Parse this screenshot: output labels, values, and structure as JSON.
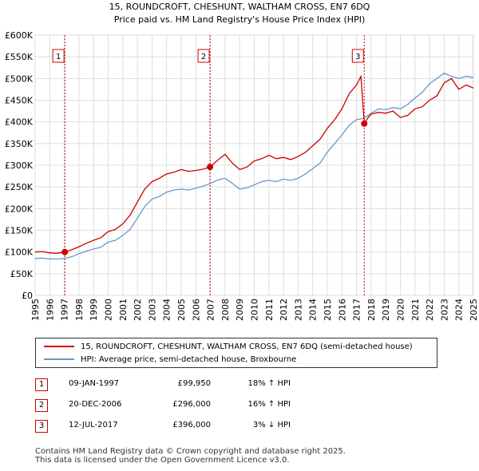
{
  "chart_data": {
    "type": "line",
    "title": "15, ROUNDCROFT, CHESHUNT, WALTHAM CROSS, EN7 6DQ",
    "subtitle": "Price paid vs. HM Land Registry's House Price Index (HPI)",
    "xlim": [
      1995,
      2025
    ],
    "ylim": [
      0,
      600000
    ],
    "x_ticks": [
      "1995",
      "1996",
      "1997",
      "1998",
      "1999",
      "2000",
      "2001",
      "2002",
      "2003",
      "2004",
      "2005",
      "2006",
      "2007",
      "2008",
      "2009",
      "2010",
      "2011",
      "2012",
      "2013",
      "2014",
      "2015",
      "2016",
      "2017",
      "2018",
      "2019",
      "2020",
      "2021",
      "2022",
      "2023",
      "2024",
      "2025"
    ],
    "y_ticks": [
      {
        "value": 0,
        "label": "£0"
      },
      {
        "value": 50000,
        "label": "£50K"
      },
      {
        "value": 100000,
        "label": "£100K"
      },
      {
        "value": 150000,
        "label": "£150K"
      },
      {
        "value": 200000,
        "label": "£200K"
      },
      {
        "value": 250000,
        "label": "£250K"
      },
      {
        "value": 300000,
        "label": "£300K"
      },
      {
        "value": 350000,
        "label": "£350K"
      },
      {
        "value": 400000,
        "label": "£400K"
      },
      {
        "value": 450000,
        "label": "£450K"
      },
      {
        "value": 500000,
        "label": "£500K"
      },
      {
        "value": 550000,
        "label": "£550K"
      },
      {
        "value": 600000,
        "label": "£600K"
      }
    ],
    "series": [
      {
        "name": "15, ROUNDCROFT, CHESHUNT, WALTHAM CROSS, EN7 6DQ (semi-detached house)",
        "color": "#cc0000",
        "x": [
          1995,
          1995.5,
          1996,
          1996.5,
          1997.03,
          1997.5,
          1998,
          1998.5,
          1999,
          1999.5,
          2000,
          2000.5,
          2001,
          2001.5,
          2002,
          2002.5,
          2003,
          2003.5,
          2004,
          2004.5,
          2005,
          2005.5,
          2006,
          2006.5,
          2006.97,
          2007.5,
          2008,
          2008.5,
          2009,
          2009.5,
          2010,
          2010.5,
          2011,
          2011.5,
          2012,
          2012.5,
          2013,
          2013.5,
          2014,
          2014.5,
          2015,
          2015.5,
          2016,
          2016.5,
          2017,
          2017.3,
          2017.53,
          2017.8,
          2018,
          2018.5,
          2019,
          2019.5,
          2020,
          2020.5,
          2021,
          2021.5,
          2022,
          2022.5,
          2023,
          2023.5,
          2024,
          2024.5,
          2025
        ],
        "y": [
          100000,
          101000,
          98000,
          97000,
          99950,
          105000,
          112000,
          120000,
          127000,
          133000,
          147000,
          152000,
          165000,
          185000,
          215000,
          245000,
          262000,
          270000,
          280000,
          284000,
          290000,
          286000,
          288000,
          291000,
          296000,
          312000,
          325000,
          305000,
          290000,
          296000,
          310000,
          315000,
          323000,
          315000,
          318000,
          313000,
          320000,
          330000,
          345000,
          360000,
          385000,
          405000,
          430000,
          465000,
          485000,
          505000,
          396000,
          410000,
          418000,
          422000,
          420000,
          425000,
          410000,
          415000,
          430000,
          435000,
          450000,
          460000,
          490000,
          500000,
          475000,
          485000,
          478000
        ]
      },
      {
        "name": "HPI: Average price, semi-detached house, Broxbourne",
        "color": "#6699cc",
        "x": [
          1995,
          1995.5,
          1996,
          1996.5,
          1997,
          1997.5,
          1998,
          1998.5,
          1999,
          1999.5,
          2000,
          2000.5,
          2001,
          2001.5,
          2002,
          2002.5,
          2003,
          2003.5,
          2004,
          2004.5,
          2005,
          2005.5,
          2006,
          2006.5,
          2007,
          2007.5,
          2008,
          2008.5,
          2009,
          2009.5,
          2010,
          2010.5,
          2011,
          2011.5,
          2012,
          2012.5,
          2013,
          2013.5,
          2014,
          2014.5,
          2015,
          2015.5,
          2016,
          2016.5,
          2017,
          2017.5,
          2018,
          2018.5,
          2019,
          2019.5,
          2020,
          2020.5,
          2021,
          2021.5,
          2022,
          2022.5,
          2023,
          2023.5,
          2024,
          2024.5,
          2025
        ],
        "y": [
          85000,
          86000,
          84000,
          84000,
          85000,
          89000,
          96000,
          102000,
          107000,
          111000,
          123000,
          127000,
          138000,
          152000,
          178000,
          205000,
          222000,
          228000,
          238000,
          243000,
          245000,
          243000,
          247000,
          252000,
          258000,
          266000,
          270000,
          258000,
          245000,
          248000,
          255000,
          262000,
          265000,
          262000,
          268000,
          265000,
          270000,
          280000,
          292000,
          305000,
          330000,
          350000,
          370000,
          392000,
          405000,
          408000,
          420000,
          430000,
          428000,
          433000,
          430000,
          440000,
          455000,
          468000,
          488000,
          500000,
          512000,
          505000,
          500000,
          505000,
          502000
        ]
      }
    ],
    "sales": [
      {
        "id": "1",
        "x": 1997.03,
        "price": 99950
      },
      {
        "id": "2",
        "x": 2006.97,
        "price": 296000
      },
      {
        "id": "3",
        "x": 2017.53,
        "price": 396000
      }
    ]
  },
  "legend": {
    "property_label": "15, ROUNDCROFT, CHESHUNT, WALTHAM CROSS, EN7 6DQ (semi-detached house)",
    "property_color": "#cc0000",
    "hpi_label": "HPI: Average price, semi-detached house, Broxbourne",
    "hpi_color": "#6699cc"
  },
  "sales_table": [
    {
      "id": "1",
      "date": "09-JAN-1997",
      "price": "£99,950",
      "hpi": "18% ↑ HPI"
    },
    {
      "id": "2",
      "date": "20-DEC-2006",
      "price": "£296,000",
      "hpi": "16% ↑ HPI"
    },
    {
      "id": "3",
      "date": "12-JUL-2017",
      "price": "£396,000",
      "hpi": "3% ↓ HPI"
    }
  ],
  "footer": {
    "line1": "Contains HM Land Registry data © Crown copyright and database right 2025.",
    "line2": "This data is licensed under the Open Government Licence v3.0."
  }
}
